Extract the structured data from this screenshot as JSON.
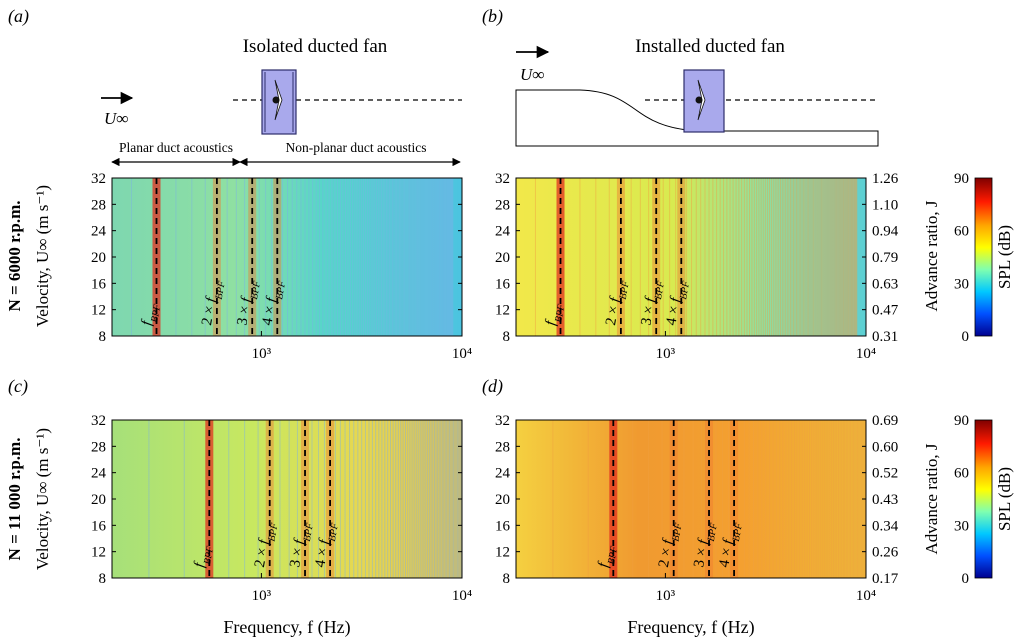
{
  "panel_labels": [
    "(a)",
    "(b)",
    "(c)",
    "(d)"
  ],
  "top": {
    "left_title": "Isolated ducted fan",
    "right_title": "Installed ducted fan",
    "flow_label": "U∞",
    "region_left": "Planar duct acoustics",
    "region_right": "Non-planar duct acoustics"
  },
  "row_labels": [
    "N = 6000 r.p.m.",
    "N = 11 000 r.p.m."
  ],
  "ylabel": "Velocity, U∞ (m s⁻¹)",
  "xlabel": "Frequency, f (Hz)",
  "advance_label": "Advance ratio, J",
  "colorbar": {
    "label": "SPL (dB)",
    "ticks": [
      "90",
      "60",
      "30",
      "0"
    ],
    "colors": [
      "#7f0000",
      "#ff1a00",
      "#ffa500",
      "#ffff00",
      "#7fffb0",
      "#00c8ff",
      "#0050ff",
      "#00008f"
    ]
  },
  "harmonic_labels": [
    "f_BPF",
    "2 × f_BPF",
    "3 × f_BPF",
    "4 × f_BPF"
  ],
  "chart_data": [
    {
      "type": "heatmap",
      "panel": "(a)",
      "xlabel": "",
      "ylabel": "Velocity, U∞ (m s⁻¹)",
      "xlim": [
        180,
        10000
      ],
      "xscale": "log",
      "ylim": [
        8,
        32
      ],
      "yticks": [
        8,
        12,
        16,
        20,
        24,
        28,
        32
      ],
      "xtick_labels": [
        "10³",
        "10⁴"
      ],
      "harmonics_hz": [
        300,
        600,
        900,
        1200
      ],
      "variable": "SPL (dB)",
      "zlim": [
        0,
        90
      ]
    },
    {
      "type": "heatmap",
      "panel": "(b)",
      "xlabel": "",
      "y2label": "Advance ratio, J",
      "xlim": [
        180,
        10000
      ],
      "xscale": "log",
      "ylim": [
        8,
        32
      ],
      "y2ticks": [
        "0.31",
        "0.47",
        "0.63",
        "0.79",
        "0.94",
        "1.10",
        "1.26"
      ],
      "xtick_labels": [
        "10³",
        "10⁴"
      ],
      "harmonics_hz": [
        300,
        600,
        900,
        1200
      ],
      "variable": "SPL (dB)",
      "zlim": [
        0,
        90
      ]
    },
    {
      "type": "heatmap",
      "panel": "(c)",
      "xlabel": "Frequency, f (Hz)",
      "ylabel": "Velocity, U∞ (m s⁻¹)",
      "xlim": [
        180,
        10000
      ],
      "xscale": "log",
      "ylim": [
        8,
        32
      ],
      "yticks": [
        8,
        12,
        16,
        20,
        24,
        28,
        32
      ],
      "xtick_labels": [
        "10³",
        "10⁴"
      ],
      "harmonics_hz": [
        550,
        1100,
        1650,
        2200
      ],
      "variable": "SPL (dB)",
      "zlim": [
        0,
        90
      ]
    },
    {
      "type": "heatmap",
      "panel": "(d)",
      "xlabel": "Frequency, f (Hz)",
      "y2label": "Advance ratio, J",
      "xlim": [
        180,
        10000
      ],
      "xscale": "log",
      "ylim": [
        8,
        32
      ],
      "y2ticks": [
        "0.17",
        "0.26",
        "0.34",
        "0.43",
        "0.52",
        "0.60",
        "0.69"
      ],
      "xtick_labels": [
        "10³",
        "10⁴"
      ],
      "harmonics_hz": [
        550,
        1100,
        1650,
        2200
      ],
      "variable": "SPL (dB)",
      "zlim": [
        0,
        90
      ]
    }
  ]
}
